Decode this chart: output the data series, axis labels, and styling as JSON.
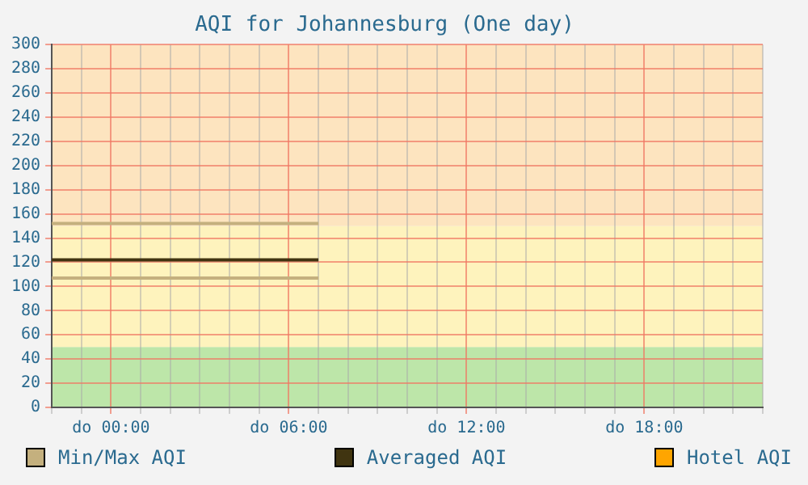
{
  "chart_data": {
    "type": "line",
    "title": "AQI for Johannesburg (One day)",
    "categories": [
      null,
      null,
      "do 00:00",
      null,
      null,
      null,
      null,
      null,
      "do 06:00",
      null,
      null,
      null,
      null,
      null,
      "do 12:00",
      null,
      null,
      null,
      null,
      null,
      "do 18:00",
      null,
      null,
      null,
      null
    ],
    "ylim": [
      0,
      300
    ],
    "yticks": [
      0,
      20,
      40,
      60,
      80,
      100,
      120,
      140,
      160,
      180,
      200,
      220,
      240,
      260,
      280,
      300
    ],
    "grid": true,
    "legend": "bottom",
    "marker": "none",
    "line_style": "solid",
    "bands": [
      {
        "axis": "y",
        "from": 0,
        "to": 50,
        "color": "#bde6a9"
      },
      {
        "axis": "y",
        "from": 50,
        "to": 150,
        "color": "#fef3bd"
      },
      {
        "axis": "y",
        "from": 150,
        "to": 300,
        "color": "#fde4bf"
      }
    ],
    "series": [
      {
        "name": "Min/Max AQI",
        "color": "#c4b07e",
        "values": [
          152,
          152,
          152,
          152,
          152,
          152,
          152,
          152,
          152,
          152,
          null,
          null,
          null,
          null,
          null,
          null,
          null,
          null,
          null,
          null,
          null,
          null,
          null,
          null,
          null
        ]
      },
      {
        "color": "#c4b07e",
        "values": [
          107,
          107,
          107,
          107,
          107,
          107,
          107,
          107,
          107,
          107,
          null,
          null,
          null,
          null,
          null,
          null,
          null,
          null,
          null,
          null,
          null,
          null,
          null,
          null,
          null
        ]
      },
      {
        "name": "Averaged AQI",
        "color": "#403410",
        "values": [
          122,
          122,
          122,
          122,
          122,
          122,
          122,
          122,
          122,
          122,
          null,
          null,
          null,
          null,
          null,
          null,
          null,
          null,
          null,
          null,
          null,
          null,
          null,
          null,
          null
        ]
      },
      {
        "name": "Hotel AQI",
        "color": "#ffa500",
        "values": [
          null,
          null,
          null,
          null,
          null,
          null,
          null,
          null,
          null,
          null,
          null,
          null,
          null,
          null,
          null,
          null,
          null,
          null,
          null,
          null,
          null,
          null,
          null,
          null,
          null
        ]
      }
    ]
  }
}
